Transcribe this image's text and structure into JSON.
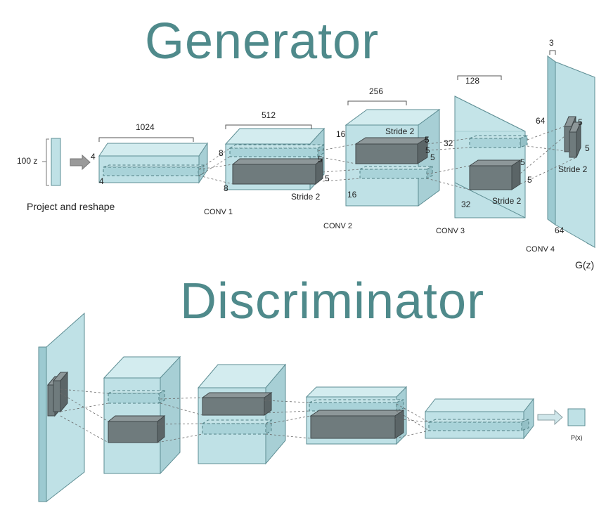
{
  "generator": {
    "title": "Generator",
    "input_label": "100 z",
    "project_label": "Project and reshape",
    "dims": {
      "b1_top": "1024",
      "b1_left": "4",
      "b1_bottom": "4",
      "b2_top": "512",
      "b2_side": "8",
      "b2_bottom": "8",
      "b2_k1": "5",
      "b2_k2": "5",
      "b3_top": "256",
      "b3_side": "16",
      "b3_bottom": "16",
      "b3_k1": "5",
      "b3_k2": "5",
      "b3_k3": "5",
      "b4_top": "128",
      "b4_left": "32",
      "b4_bottom": "32",
      "b4_k1": "5",
      "b4_k2": "5",
      "b5_top": "3",
      "b5_left": "64",
      "b5_bottom": "64",
      "b5_k1": "5",
      "b5_k2": "5"
    },
    "strides": {
      "s1": "Stride 2",
      "s2": "Stride 2",
      "s3": "Stride 2",
      "s4": "Stride 2"
    },
    "layers": {
      "conv1": "CONV 1",
      "conv2": "CONV 2",
      "conv3": "CONV 3",
      "conv4": "CONV 4"
    },
    "output_label": "G(z)"
  },
  "discriminator": {
    "title": "Discriminator",
    "output_label": "P(x)"
  },
  "colors": {
    "title": "#4f8a8b",
    "box_face": "#bfe1e6",
    "box_top": "#d3ecef",
    "box_side": "#a7cfd5",
    "box_edge": "#5e8e94",
    "kernel_face": "#6f7b7d",
    "kernel_top": "#8d9799",
    "kernel_side": "#5b6567"
  }
}
